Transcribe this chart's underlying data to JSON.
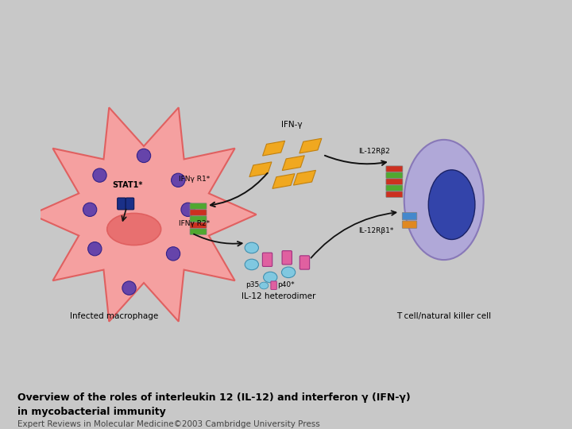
{
  "bg_color": "#f5f5f5",
  "outer_bg": "#c8c8c8",
  "panel_bg": "#ffffff",
  "panel_border": "#aaaaaa",
  "title_line1": "Overview of the roles of interleukin 12 (IL-12) and interferon γ (IFN-γ)",
  "title_line2": "in mycobacterial immunity",
  "subtitle": "Expert Reviews in Molecular Medicine©2003 Cambridge University Press",
  "macrophage_label": "Infected macrophage",
  "tcell_label": "T cell/natural killer cell",
  "il12_label": "IL-12 heterodimer",
  "ifng_label": "IFN-γ",
  "stat1_label": "STAT1*",
  "ifng_r1_label": "IFNγ R1*",
  "ifng_r2_label": "IFNγ R2*",
  "il12rb2_label": "IL-12Rβ2",
  "il12rb1_label": "IL-12Rβ1*",
  "p35_label": "p35",
  "p40_label": "p40*",
  "macrophage_color": "#f5a0a0",
  "macrophage_edge": "#e06060",
  "nucleus_color": "#e87070",
  "purple_dot_color": "#6644aa",
  "tcell_body_color": "#b0a8d8",
  "tcell_edge": "#8878b8",
  "tcell_nucleus_color": "#3344aa",
  "ifng_molecule_color": "#f0a820",
  "ifng_molecule_edge": "#c08010",
  "il12_p35_color": "#80c8e0",
  "il12_p40_color": "#e060a0",
  "receptor_green": "#50a830",
  "receptor_red": "#cc3020",
  "receptor_orange": "#e08820",
  "receptor_blue": "#4488cc",
  "arrow_color": "#111111"
}
